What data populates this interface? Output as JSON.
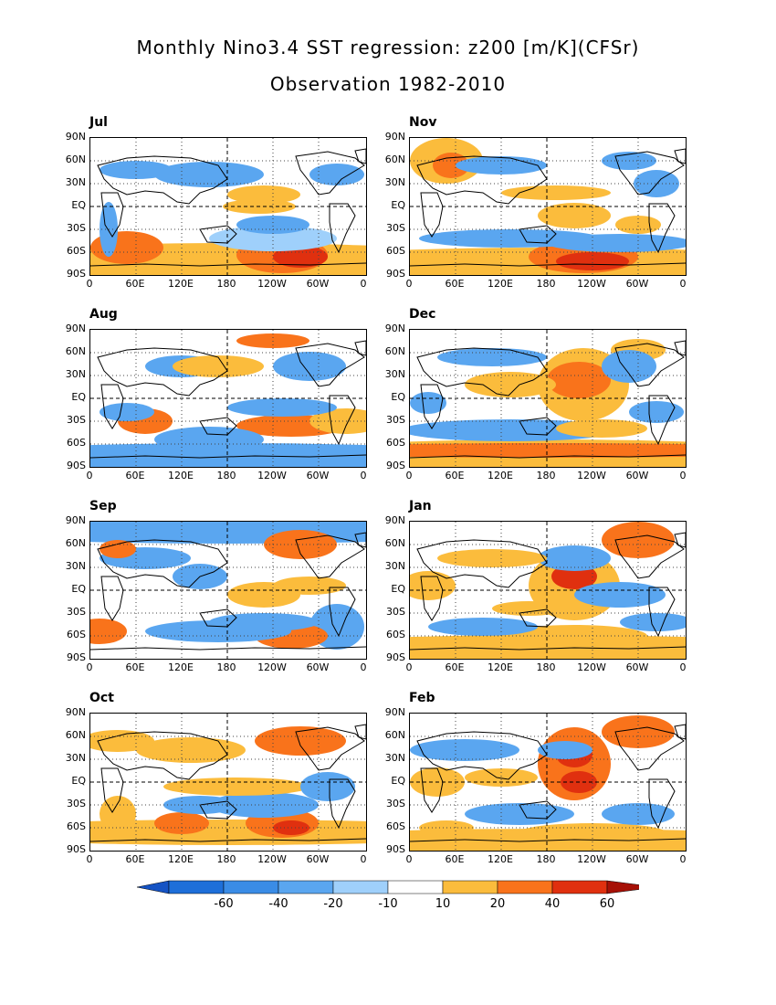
{
  "title_line1": "Monthly Nino3.4 SST regression: z200 [m/K](CFSr)",
  "title_line2": "Observation 1982-2010",
  "ytick_labels": [
    "90N",
    "60N",
    "30N",
    "EQ",
    "30S",
    "60S",
    "90S"
  ],
  "xtick_labels": [
    "0",
    "60E",
    "120E",
    "180",
    "120W",
    "60W",
    "0"
  ],
  "panels": [
    {
      "month": "Jul"
    },
    {
      "month": "Nov"
    },
    {
      "month": "Aug"
    },
    {
      "month": "Dec"
    },
    {
      "month": "Sep"
    },
    {
      "month": "Jan"
    },
    {
      "month": "Oct"
    },
    {
      "month": "Feb"
    }
  ],
  "colorbar": {
    "levels": [
      "-60",
      "-40",
      "-20",
      "-10",
      "10",
      "20",
      "40",
      "60"
    ],
    "colors": [
      "#1e6fd9",
      "#3a8ce6",
      "#5aa6f0",
      "#9fd0fb",
      "#ffffff",
      "#fbbc3c",
      "#f9731b",
      "#e0300f",
      "#a61006"
    ],
    "arrow_low": "#1553c4",
    "arrow_high": "#a61006"
  }
}
